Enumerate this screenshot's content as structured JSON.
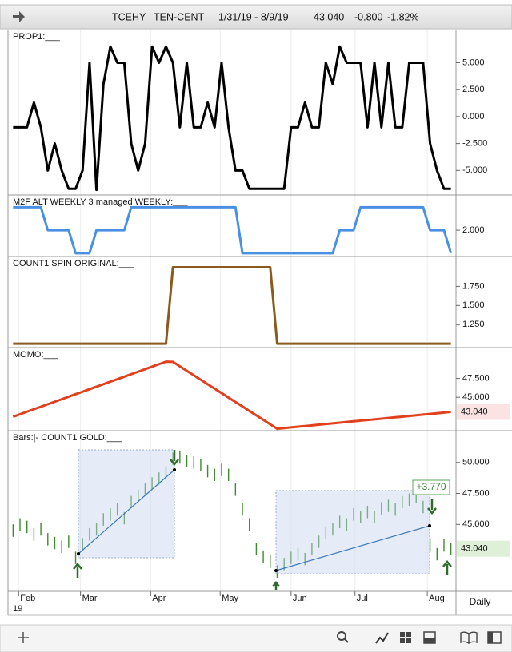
{
  "header": {
    "symbol": "TCEHY",
    "name": "TEN-CENT",
    "range": "1/31/19 - 8/9/19",
    "last": "43.040",
    "change": "-0.800",
    "change_pct": "-1.82%"
  },
  "x_axis": {
    "xlim": [
      -0.5,
      63.5
    ],
    "xticks": [
      {
        "value": 0.8,
        "label": "Feb"
      },
      {
        "value": 9.7,
        "label": "Mar"
      },
      {
        "value": 19.8,
        "label": "Apr"
      },
      {
        "value": 29.8,
        "label": "May"
      },
      {
        "value": 40,
        "label": "Jun"
      },
      {
        "value": 49.2,
        "label": "Jul"
      },
      {
        "value": 59.6,
        "label": "Aug"
      }
    ],
    "year_label": "19",
    "interval": "Daily"
  },
  "chart_data": [
    {
      "type": "line",
      "title": "PROP1:___",
      "color": "#000000",
      "values": [
        -1,
        -1,
        -1,
        1.3,
        -1,
        -5,
        -2.5,
        -5,
        -6.7,
        -6.7,
        -5,
        5,
        -6.8,
        3,
        6.5,
        5,
        5,
        -2.5,
        -5,
        -2.5,
        6.5,
        5,
        6.5,
        5,
        -1,
        5,
        -1,
        -1,
        1.3,
        -1,
        5,
        -1,
        -5,
        -5,
        -6.7,
        -6.7,
        -6.7,
        -6.7,
        -6.7,
        -6.7,
        -1,
        -1,
        1.3,
        -1,
        -1,
        5,
        3,
        6.5,
        5,
        5,
        5,
        -1,
        5,
        -1,
        5,
        -1,
        -1,
        5,
        5,
        5,
        -2.5,
        -5,
        -6.7,
        -6.7
      ],
      "ylim": [
        -7.2,
        8.0
      ],
      "yticks": [
        {
          "value": 5,
          "label": "5.000"
        },
        {
          "value": 2.5,
          "label": "2.500"
        },
        {
          "value": 0,
          "label": "0.000"
        },
        {
          "value": -2.5,
          "label": "-2.500"
        },
        {
          "value": -5,
          "label": "-5.000"
        }
      ]
    },
    {
      "type": "line",
      "title": "M2F ALT WEEKLY 3 managed WEEKLY:___",
      "color": "#4a90e2",
      "values": [
        3,
        3,
        3,
        3,
        3,
        2,
        2,
        2,
        2,
        1,
        1,
        1,
        2,
        2,
        2,
        2,
        2,
        3,
        3,
        3,
        3,
        3,
        3,
        3,
        3,
        3,
        3,
        3,
        3,
        3,
        3,
        3,
        3,
        1,
        1,
        1,
        1,
        1,
        1,
        1,
        1,
        1,
        1,
        1,
        1,
        1,
        1,
        2,
        2,
        2,
        3,
        3,
        3,
        3,
        3,
        3,
        3,
        3,
        3,
        3,
        2,
        2,
        2,
        1
      ],
      "ylim": [
        0.89,
        3.5
      ],
      "yticks": [
        {
          "value": 2,
          "label": "2.000"
        }
      ]
    },
    {
      "type": "line",
      "title": "COUNT1 SPIN ORIGINAL:___",
      "color": "#8b5a1e",
      "values": [
        1,
        1,
        1,
        1,
        1,
        1,
        1,
        1,
        1,
        1,
        1,
        1,
        1,
        1,
        1,
        1,
        1,
        1,
        1,
        1,
        1,
        1,
        1,
        2,
        2,
        2,
        2,
        2,
        2,
        2,
        2,
        2,
        2,
        2,
        2,
        2,
        2,
        2,
        1,
        1,
        1,
        1,
        1,
        1,
        1,
        1,
        1,
        1,
        1,
        1,
        1,
        1,
        1,
        1,
        1,
        1,
        1,
        1,
        1,
        1,
        1,
        1,
        1,
        1
      ],
      "ylim": [
        0.96,
        2.13
      ],
      "yticks": [
        {
          "value": 1.75,
          "label": "1.750"
        },
        {
          "value": 1.5,
          "label": "1.500"
        },
        {
          "value": 1.25,
          "label": "1.250"
        }
      ]
    },
    {
      "type": "line",
      "title": "MOMO:___",
      "color": "#e2401c",
      "values": [
        42.4,
        42.73,
        43.07,
        43.4,
        43.73,
        44.07,
        44.4,
        44.73,
        45.07,
        45.4,
        45.73,
        46.07,
        46.4,
        46.73,
        47.07,
        47.4,
        47.73,
        48.07,
        48.4,
        48.73,
        49.07,
        49.4,
        49.73,
        49.7,
        49.11,
        48.51,
        47.92,
        47.33,
        46.73,
        46.14,
        45.55,
        44.95,
        44.36,
        43.77,
        43.17,
        42.58,
        41.99,
        41.39,
        40.8,
        40.89,
        40.98,
        41.07,
        41.16,
        41.25,
        41.34,
        41.43,
        41.52,
        41.61,
        41.7,
        41.79,
        41.88,
        41.96,
        42.05,
        42.14,
        42.23,
        42.32,
        42.41,
        42.5,
        42.59,
        42.68,
        42.77,
        42.86,
        42.95,
        43.04
      ],
      "ylim": [
        40.65,
        51.5
      ],
      "yticks": [
        {
          "value": 47.5,
          "label": "47.500"
        },
        {
          "value": 45,
          "label": "45.000"
        }
      ],
      "last_price": {
        "value": 43.04,
        "label": "43.040"
      },
      "badge_color": "#fbe3e3"
    },
    {
      "type": "ohlc",
      "title": "Bars:|-    COUNT1 GOLD:___",
      "color": "#3f8a2e",
      "high": [
        45.0,
        45.5,
        45.3,
        44.7,
        45.1,
        44.3,
        44.0,
        43.7,
        44.1,
        42.8,
        43.9,
        44.7,
        45.1,
        45.9,
        46.3,
        46.7,
        46.0,
        47.3,
        47.8,
        48.3,
        48.8,
        49.2,
        49.7,
        50.8,
        50.9,
        50.6,
        50.5,
        50.3,
        49.8,
        49.5,
        49.9,
        49.5,
        48.3,
        46.7,
        45.5,
        43.5,
        42.9,
        42.5,
        41.7,
        42.3,
        42.8,
        43.1,
        42.7,
        43.5,
        44.1,
        44.8,
        45.1,
        45.7,
        45.5,
        46.3,
        46.1,
        46.5,
        46.1,
        46.8,
        47.0,
        46.7,
        47.3,
        47.5,
        47.7,
        46.9,
        43.8,
        43.1,
        43.8,
        43.54
      ],
      "low": [
        44.0,
        44.5,
        44.3,
        43.7,
        44.1,
        43.3,
        43.0,
        42.7,
        43.1,
        41.8,
        42.9,
        43.7,
        44.1,
        44.9,
        45.3,
        45.7,
        45.0,
        46.3,
        46.8,
        47.3,
        47.8,
        48.2,
        48.7,
        49.8,
        49.9,
        49.6,
        49.5,
        49.3,
        48.8,
        48.5,
        48.9,
        48.5,
        47.3,
        45.7,
        44.5,
        42.5,
        41.9,
        41.5,
        40.7,
        41.3,
        41.8,
        42.1,
        41.7,
        42.5,
        43.1,
        43.8,
        44.1,
        44.7,
        44.5,
        45.3,
        45.1,
        45.5,
        45.1,
        45.8,
        46.0,
        45.7,
        46.3,
        46.5,
        46.7,
        45.9,
        42.8,
        42.1,
        42.8,
        42.54
      ],
      "ylim": [
        39.6,
        52.5
      ],
      "yticks": [
        {
          "value": 50,
          "label": "50.000"
        },
        {
          "value": 47.5,
          "label": "47.500"
        },
        {
          "value": 45,
          "label": "45.000"
        }
      ],
      "last_price": {
        "value": 43.04,
        "label": "43.040"
      },
      "badge_color": "#dff0d8",
      "annotations": [
        {
          "text": "+3.770"
        }
      ]
    }
  ]
}
